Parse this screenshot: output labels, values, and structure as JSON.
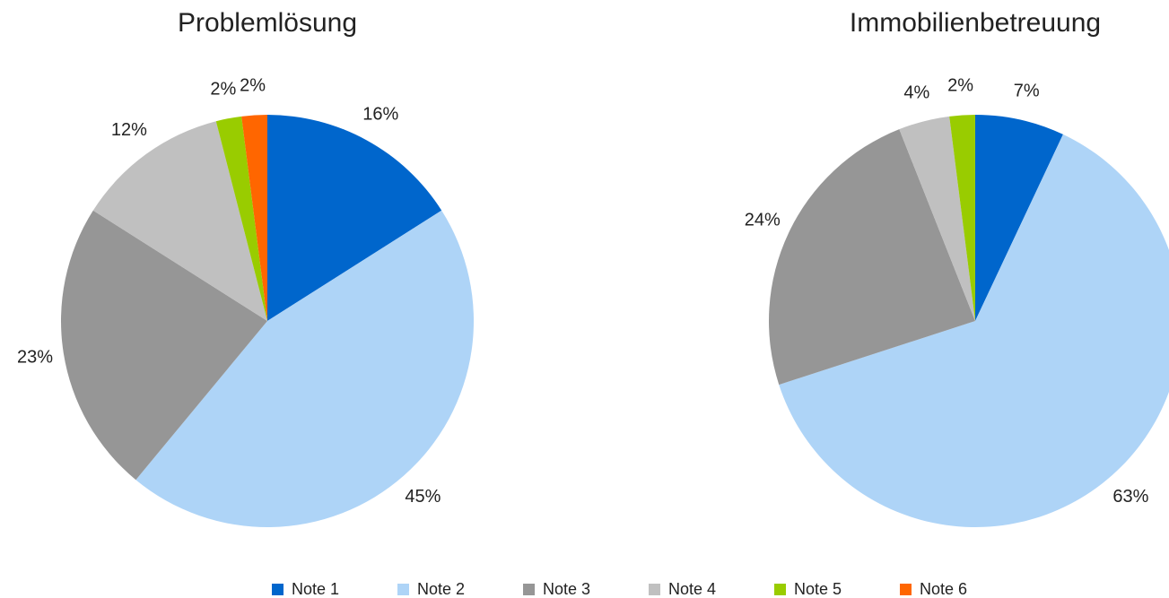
{
  "legend": {
    "categories": [
      "Note 1",
      "Note 2",
      "Note 3",
      "Note 4",
      "Note 5",
      "Note 6"
    ],
    "colors": [
      "#0066cc",
      "#aed4f7",
      "#969696",
      "#c0c0c0",
      "#99cc00",
      "#ff6600"
    ]
  },
  "chart_data": [
    {
      "type": "pie",
      "title": "Problemlösung",
      "values": [
        16,
        45,
        23,
        12,
        2,
        2
      ],
      "value_labels": [
        "16%",
        "45%",
        "23%",
        "12%",
        "2%",
        "2%"
      ]
    },
    {
      "type": "pie",
      "title": "Immobilienbetreuung",
      "values": [
        7,
        63,
        24,
        4,
        2
      ],
      "value_labels": [
        "7%",
        "63%",
        "24%",
        "4%",
        "2%"
      ]
    }
  ]
}
